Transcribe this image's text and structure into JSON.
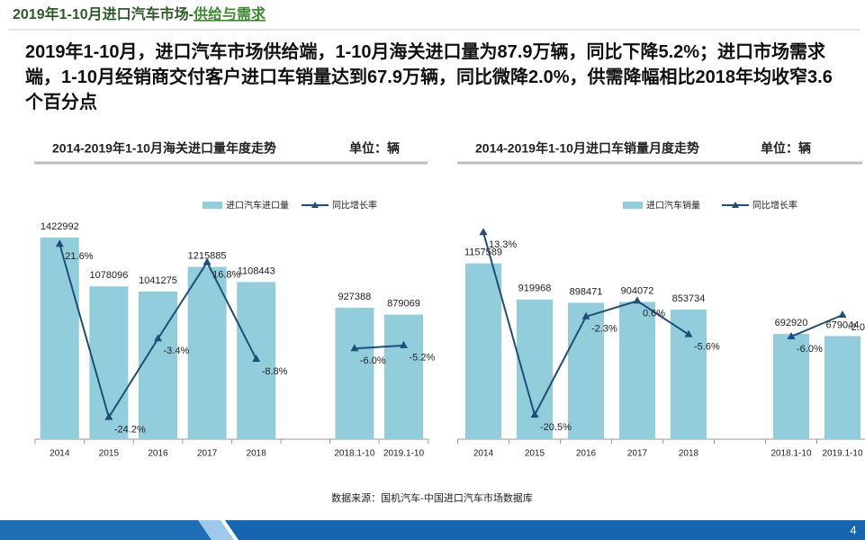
{
  "header": {
    "title": "2019年1-10月进口汽车市场-",
    "highlight": "供给与需求"
  },
  "summary": "2019年1-10月，进口汽车市场供给端，1-10月海关进口量为87.9万辆，同比下降5.2%；进口市场需求端，1-10月经销商交付客户进口车销量达到67.9万辆，同比微降2.0%，供需降幅相比2018年均收窄3.6个百分点",
  "source": "数据来源：国机汽车-中国进口汽车市场数据库",
  "page_number": 4,
  "chart_data": [
    {
      "type": "bar_line",
      "title": "2014-2019年1-10月海关进口量年度走势",
      "unit": "单位：辆",
      "categories": [
        "2014",
        "2015",
        "2016",
        "2017",
        "2018",
        null,
        "2018.1-10",
        "2019.1-10"
      ],
      "series": [
        {
          "name": "进口汽车进口量",
          "color": "#92cddc",
          "values": [
            1422992,
            1078096,
            1041275,
            1215885,
            1108443,
            null,
            927388,
            879069
          ]
        },
        {
          "name": "同比增长率",
          "color": "#1f4e79",
          "axis": "y2",
          "values": [
            21.6,
            -24.2,
            -3.4,
            16.8,
            -8.8,
            null,
            -6.0,
            -5.2
          ],
          "value_labels": [
            "21.6%",
            "-24.2%",
            "-3.4%",
            "16.8%",
            "-8.8%",
            null,
            "-6.0%",
            "-5.2%"
          ]
        }
      ],
      "ylim": [
        0,
        1600000
      ],
      "y2lim": [
        -30,
        30
      ]
    },
    {
      "type": "bar_line",
      "title": "2014-2019年1-10月进口车销量月度走势",
      "unit": "单位：辆",
      "categories": [
        "2014",
        "2015",
        "2016",
        "2017",
        "2018",
        null,
        "2018.1-10",
        "2019.1-10"
      ],
      "series": [
        {
          "name": "进口汽车销量",
          "color": "#92cddc",
          "values": [
            1157589,
            919968,
            898471,
            904072,
            853734,
            null,
            692920,
            679044
          ]
        },
        {
          "name": "同比增长率",
          "color": "#1f4e79",
          "axis": "y2",
          "values": [
            13.3,
            -20.5,
            -2.3,
            0.6,
            -5.6,
            null,
            -6.0,
            -2.0
          ],
          "value_labels": [
            "13.3%",
            "-20.5%",
            "-2.3%",
            "0.6%",
            "-5.6%",
            null,
            "-6.0%",
            "-2.0%"
          ]
        }
      ],
      "ylim": [
        0,
        1600000
      ],
      "y2lim": [
        -25,
        20
      ]
    }
  ]
}
